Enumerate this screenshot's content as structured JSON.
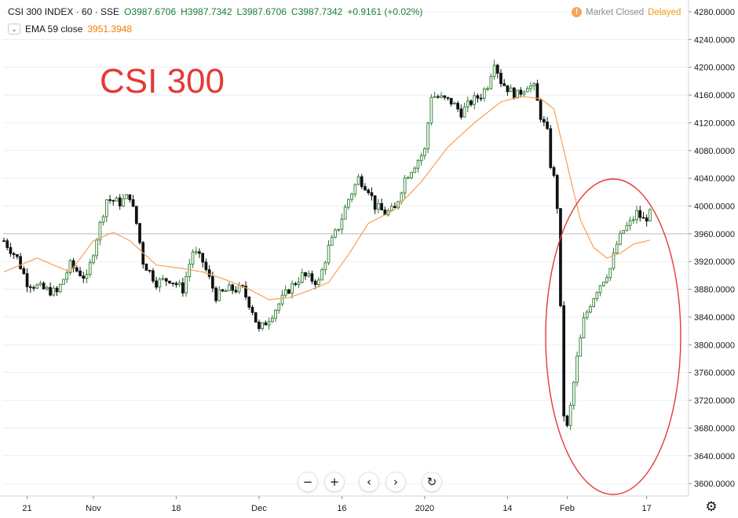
{
  "header": {
    "symbol": "CSI 300 INDEX · 60 · SSE",
    "open": "O3987.6706",
    "high": "H3987.7342",
    "low": "L3987.6706",
    "close": "C3987.7342",
    "change": "+0.9161 (+0.02%)",
    "ema_label": "EMA 59 close",
    "ema_value": "3951.3948",
    "market_status": "Market Closed",
    "delayed": "Delayed"
  },
  "toolbar": {
    "zoom_out": "−",
    "zoom_in": "+",
    "scroll_left": "‹",
    "scroll_right": "›",
    "reset": "↻"
  },
  "colors": {
    "up": "#2e7d32",
    "down": "#111111",
    "ema": "#f5a05a",
    "annotation": "#e53935",
    "grid": "#e0e3eb"
  },
  "chart_data": {
    "type": "candlestick",
    "title": "CSI 300",
    "ylim": [
      3580,
      4290
    ],
    "y_ticks": [
      "4280.0000",
      "4240.0000",
      "4200.0000",
      "4160.0000",
      "4120.0000",
      "4080.0000",
      "4040.0000",
      "4000.0000",
      "3960.0000",
      "3920.0000",
      "3880.0000",
      "3840.0000",
      "3800.0000",
      "3760.0000",
      "3720.0000",
      "3680.0000",
      "3640.0000",
      "3600.0000"
    ],
    "x_ticks": [
      "21",
      "Nov",
      "18",
      "Dec",
      "16",
      "2020",
      "14",
      "Feb",
      "17"
    ],
    "x_tick_bar": [
      7,
      27,
      52,
      77,
      102,
      127,
      152,
      170,
      194
    ],
    "horizontal_line": 3960,
    "price_path": [
      [
        0,
        3950
      ],
      [
        4,
        3925
      ],
      [
        7,
        3890
      ],
      [
        12,
        3880
      ],
      [
        16,
        3875
      ],
      [
        20,
        3915
      ],
      [
        25,
        3895
      ],
      [
        28,
        3955
      ],
      [
        31,
        4010
      ],
      [
        35,
        4005
      ],
      [
        38,
        4015
      ],
      [
        40,
        3975
      ],
      [
        42,
        3920
      ],
      [
        46,
        3890
      ],
      [
        50,
        3895
      ],
      [
        54,
        3880
      ],
      [
        57,
        3935
      ],
      [
        60,
        3920
      ],
      [
        64,
        3870
      ],
      [
        68,
        3880
      ],
      [
        72,
        3880
      ],
      [
        75,
        3850
      ],
      [
        77,
        3820
      ],
      [
        81,
        3845
      ],
      [
        86,
        3880
      ],
      [
        90,
        3900
      ],
      [
        95,
        3890
      ],
      [
        98,
        3940
      ],
      [
        101,
        3970
      ],
      [
        104,
        4010
      ],
      [
        107,
        4040
      ],
      [
        110,
        4025
      ],
      [
        112,
        4000
      ],
      [
        115,
        3990
      ],
      [
        118,
        3995
      ],
      [
        121,
        4040
      ],
      [
        124,
        4060
      ],
      [
        127,
        4080
      ],
      [
        129,
        4160
      ],
      [
        132,
        4155
      ],
      [
        135,
        4150
      ],
      [
        138,
        4135
      ],
      [
        141,
        4150
      ],
      [
        144,
        4160
      ],
      [
        146,
        4175
      ],
      [
        148,
        4210
      ],
      [
        150,
        4180
      ],
      [
        153,
        4165
      ],
      [
        155,
        4160
      ],
      [
        158,
        4175
      ],
      [
        160,
        4170
      ],
      [
        162,
        4130
      ],
      [
        164,
        4105
      ],
      [
        165,
        4060
      ],
      [
        166,
        4040
      ],
      [
        167,
        4000
      ],
      [
        169,
        3700
      ],
      [
        170,
        3680
      ],
      [
        171,
        3710
      ],
      [
        173,
        3780
      ],
      [
        175,
        3835
      ],
      [
        177,
        3860
      ],
      [
        179,
        3880
      ],
      [
        181,
        3895
      ],
      [
        183,
        3910
      ],
      [
        185,
        3945
      ],
      [
        187,
        3965
      ],
      [
        189,
        3975
      ],
      [
        191,
        3990
      ],
      [
        193,
        3980
      ],
      [
        195,
        3988
      ]
    ],
    "ema_path": [
      [
        0,
        3905
      ],
      [
        10,
        3925
      ],
      [
        20,
        3905
      ],
      [
        27,
        3950
      ],
      [
        33,
        3962
      ],
      [
        38,
        3950
      ],
      [
        46,
        3915
      ],
      [
        54,
        3910
      ],
      [
        60,
        3905
      ],
      [
        68,
        3892
      ],
      [
        74,
        3880
      ],
      [
        80,
        3865
      ],
      [
        86,
        3868
      ],
      [
        92,
        3878
      ],
      [
        98,
        3890
      ],
      [
        104,
        3930
      ],
      [
        110,
        3975
      ],
      [
        118,
        3995
      ],
      [
        126,
        4035
      ],
      [
        134,
        4085
      ],
      [
        142,
        4120
      ],
      [
        150,
        4150
      ],
      [
        156,
        4158
      ],
      [
        162,
        4155
      ],
      [
        166,
        4140
      ],
      [
        170,
        4060
      ],
      [
        174,
        3980
      ],
      [
        178,
        3940
      ],
      [
        182,
        3925
      ],
      [
        186,
        3932
      ],
      [
        190,
        3945
      ],
      [
        195,
        3951
      ]
    ]
  }
}
